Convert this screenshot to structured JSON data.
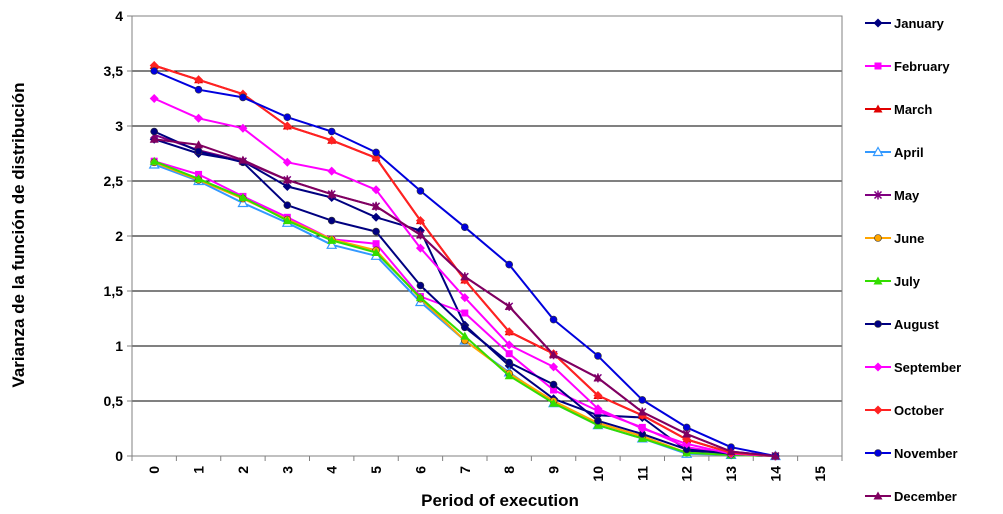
{
  "chart_data": {
    "type": "line",
    "xlabel": "Period of execution",
    "ylabel": "Varianza de la función de distribución",
    "xlim": [
      0,
      15
    ],
    "ylim": [
      0,
      4
    ],
    "x_ticks": [
      "0",
      "1",
      "2",
      "3",
      "4",
      "5",
      "6",
      "7",
      "8",
      "9",
      "10",
      "11",
      "12",
      "13",
      "14",
      "15"
    ],
    "y_ticks": [
      "0",
      "0,5",
      "1",
      "1,5",
      "2",
      "2,5",
      "3",
      "3,5",
      "4"
    ],
    "grid": "horizontal",
    "legend_position": "right",
    "x": [
      0,
      1,
      2,
      3,
      4,
      5,
      6,
      7,
      8,
      9,
      10,
      11,
      12,
      13,
      14
    ],
    "series": [
      {
        "name": "January",
        "color": "#000080",
        "marker": "diamond",
        "values": [
          2.88,
          2.75,
          2.68,
          2.45,
          2.35,
          2.17,
          2.05,
          1.19,
          0.82,
          0.52,
          0.37,
          0.35,
          0.05,
          0.01,
          0.0
        ]
      },
      {
        "name": "February",
        "color": "#ff00ff",
        "marker": "square",
        "values": [
          2.68,
          2.56,
          2.36,
          2.17,
          1.97,
          1.93,
          1.45,
          1.3,
          0.93,
          0.6,
          0.41,
          0.26,
          0.08,
          0.02,
          0.0
        ]
      },
      {
        "name": "March",
        "color": "#e00000",
        "marker": "triangle",
        "values": [
          3.55,
          3.42,
          3.29,
          3.0,
          2.87,
          2.71,
          2.14,
          1.6,
          1.13,
          0.93,
          0.55,
          0.37,
          0.15,
          0.03,
          0.0
        ]
      },
      {
        "name": "April",
        "color": "#3399ff",
        "marker": "triangle-open",
        "values": [
          2.65,
          2.5,
          2.3,
          2.12,
          1.92,
          1.82,
          1.4,
          1.05,
          0.76,
          0.48,
          0.28,
          0.16,
          0.02,
          0.01,
          0.0
        ]
      },
      {
        "name": "May",
        "color": "#800080",
        "marker": "star",
        "values": [
          2.92,
          2.78,
          2.68,
          2.51,
          2.38,
          2.27,
          2.01,
          1.63,
          1.36,
          0.92,
          0.71,
          0.4,
          0.2,
          0.04,
          0.0
        ]
      },
      {
        "name": "June",
        "color": "#ffa500",
        "marker": "circle",
        "values": [
          2.67,
          2.51,
          2.34,
          2.15,
          1.97,
          1.87,
          1.43,
          1.05,
          0.75,
          0.5,
          0.3,
          0.18,
          0.03,
          0.01,
          0.0
        ]
      },
      {
        "name": "July",
        "color": "#33dd00",
        "marker": "triangle",
        "values": [
          2.68,
          2.52,
          2.35,
          2.14,
          1.96,
          1.85,
          1.44,
          1.09,
          0.73,
          0.48,
          0.28,
          0.16,
          0.03,
          0.01,
          0.0
        ]
      },
      {
        "name": "August",
        "color": "#000080",
        "marker": "circle",
        "values": [
          2.95,
          2.77,
          2.67,
          2.28,
          2.14,
          2.04,
          1.55,
          1.17,
          0.85,
          0.65,
          0.32,
          0.2,
          0.06,
          0.02,
          0.0
        ]
      },
      {
        "name": "September",
        "color": "#ff00ff",
        "marker": "diamond",
        "values": [
          3.25,
          3.07,
          2.98,
          2.67,
          2.59,
          2.42,
          1.89,
          1.44,
          1.01,
          0.81,
          0.43,
          0.25,
          0.11,
          0.02,
          0.0
        ]
      },
      {
        "name": "October",
        "color": "#ff2222",
        "marker": "diamond",
        "values": [
          3.55,
          3.42,
          3.29,
          3.0,
          2.87,
          2.71,
          2.14,
          1.6,
          1.13,
          0.93,
          0.55,
          0.37,
          0.15,
          0.03,
          0.0
        ]
      },
      {
        "name": "November",
        "color": "#0000dd",
        "marker": "circle",
        "values": [
          3.5,
          3.33,
          3.26,
          3.08,
          2.95,
          2.76,
          2.41,
          2.08,
          1.74,
          1.24,
          0.91,
          0.51,
          0.26,
          0.08,
          0.0
        ]
      },
      {
        "name": "December",
        "color": "#800060",
        "marker": "triangle",
        "values": [
          2.88,
          2.83,
          2.69,
          2.51,
          2.38,
          2.27,
          2.01,
          1.63,
          1.36,
          0.92,
          0.71,
          0.4,
          0.2,
          0.04,
          0.0
        ]
      }
    ]
  }
}
